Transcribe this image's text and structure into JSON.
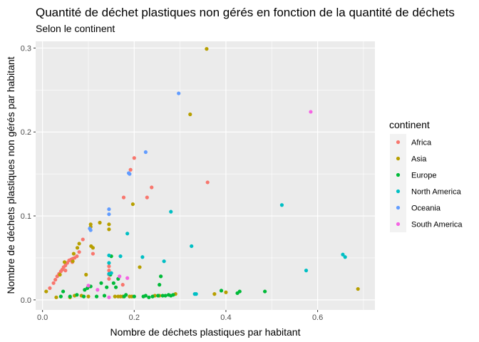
{
  "chart_data": {
    "type": "scatter",
    "title": "Quantité de déchet plastiques non gérés en fonction de la quantité de déchets",
    "subtitle": "Selon le continent",
    "xlabel": "Nombre de déchets plastiques par habitant",
    "ylabel": "Nombre de déchets plastiques non gérés par habitant",
    "xlim": [
      -0.015,
      0.725
    ],
    "ylim": [
      -0.012,
      0.308
    ],
    "x_ticks": [
      0.0,
      0.2,
      0.4,
      0.6
    ],
    "x_tick_labels": [
      "0.0",
      "0.2",
      "0.4",
      "0.6"
    ],
    "y_ticks": [
      0.0,
      0.1,
      0.2,
      0.3
    ],
    "y_tick_labels": [
      "0.0",
      "0.1",
      "0.2",
      "0.3"
    ],
    "grid": true,
    "legend_title": "continent",
    "legend_position": "right",
    "series": [
      {
        "name": "Africa",
        "color": "#F8766D",
        "points": [
          [
            0.016,
            0.014
          ],
          [
            0.024,
            0.02
          ],
          [
            0.028,
            0.024
          ],
          [
            0.032,
            0.028
          ],
          [
            0.036,
            0.031
          ],
          [
            0.04,
            0.034
          ],
          [
            0.043,
            0.036
          ],
          [
            0.046,
            0.039
          ],
          [
            0.05,
            0.041
          ],
          [
            0.054,
            0.044
          ],
          [
            0.058,
            0.047
          ],
          [
            0.062,
            0.048
          ],
          [
            0.066,
            0.049
          ],
          [
            0.07,
            0.05
          ],
          [
            0.08,
            0.057
          ],
          [
            0.088,
            0.072
          ],
          [
            0.145,
            0.04
          ],
          [
            0.145,
            0.035
          ],
          [
            0.145,
            0.03
          ],
          [
            0.175,
            0.018
          ],
          [
            0.177,
            0.122
          ],
          [
            0.192,
            0.155
          ],
          [
            0.2,
            0.169
          ],
          [
            0.228,
            0.122
          ],
          [
            0.238,
            0.134
          ],
          [
            0.36,
            0.14
          ],
          [
            0.05,
            0.035
          ],
          [
            0.065,
            0.045
          ],
          [
            0.075,
            0.052
          ],
          [
            0.145,
            0.025
          ],
          [
            0.11,
            0.055
          ]
        ]
      },
      {
        "name": "Asia",
        "color": "#B79F00",
        "points": [
          [
            0.008,
            0.01
          ],
          [
            0.03,
            0.003
          ],
          [
            0.038,
            0.03
          ],
          [
            0.048,
            0.045
          ],
          [
            0.06,
            0.003
          ],
          [
            0.066,
            0.046
          ],
          [
            0.068,
            0.055
          ],
          [
            0.07,
            0.005
          ],
          [
            0.076,
            0.062
          ],
          [
            0.08,
            0.067
          ],
          [
            0.085,
            0.005
          ],
          [
            0.095,
            0.03
          ],
          [
            0.1,
            0.004
          ],
          [
            0.105,
            0.087
          ],
          [
            0.105,
            0.09
          ],
          [
            0.106,
            0.064
          ],
          [
            0.11,
            0.062
          ],
          [
            0.125,
            0.092
          ],
          [
            0.145,
            0.09
          ],
          [
            0.145,
            0.084
          ],
          [
            0.158,
            0.004
          ],
          [
            0.165,
            0.004
          ],
          [
            0.17,
            0.004
          ],
          [
            0.175,
            0.004
          ],
          [
            0.19,
            0.004
          ],
          [
            0.195,
            0.004
          ],
          [
            0.197,
            0.114
          ],
          [
            0.212,
            0.039
          ],
          [
            0.245,
            0.005
          ],
          [
            0.255,
            0.005
          ],
          [
            0.29,
            0.007
          ],
          [
            0.322,
            0.221
          ],
          [
            0.358,
            0.299
          ],
          [
            0.375,
            0.007
          ],
          [
            0.4,
            0.009
          ],
          [
            0.688,
            0.013
          ]
        ]
      },
      {
        "name": "Europe",
        "color": "#00BA38",
        "points": [
          [
            0.04,
            0.004
          ],
          [
            0.045,
            0.01
          ],
          [
            0.06,
            0.004
          ],
          [
            0.075,
            0.006
          ],
          [
            0.09,
            0.004
          ],
          [
            0.092,
            0.012
          ],
          [
            0.098,
            0.014
          ],
          [
            0.105,
            0.016
          ],
          [
            0.118,
            0.004
          ],
          [
            0.128,
            0.02
          ],
          [
            0.135,
            0.005
          ],
          [
            0.14,
            0.015
          ],
          [
            0.148,
            0.03
          ],
          [
            0.15,
            0.052
          ],
          [
            0.155,
            0.02
          ],
          [
            0.16,
            0.015
          ],
          [
            0.165,
            0.025
          ],
          [
            0.178,
            0.004
          ],
          [
            0.182,
            0.006
          ],
          [
            0.2,
            0.004
          ],
          [
            0.22,
            0.004
          ],
          [
            0.225,
            0.005
          ],
          [
            0.232,
            0.003
          ],
          [
            0.24,
            0.004
          ],
          [
            0.252,
            0.005
          ],
          [
            0.255,
            0.018
          ],
          [
            0.258,
            0.028
          ],
          [
            0.262,
            0.005
          ],
          [
            0.268,
            0.005
          ],
          [
            0.275,
            0.006
          ],
          [
            0.28,
            0.005
          ],
          [
            0.285,
            0.006
          ],
          [
            0.39,
            0.011
          ],
          [
            0.425,
            0.008
          ],
          [
            0.43,
            0.01
          ],
          [
            0.485,
            0.01
          ]
        ]
      },
      {
        "name": "North America",
        "color": "#00BFC4",
        "points": [
          [
            0.145,
            0.053
          ],
          [
            0.145,
            0.044
          ],
          [
            0.145,
            0.031
          ],
          [
            0.15,
            0.032
          ],
          [
            0.17,
            0.052
          ],
          [
            0.185,
            0.079
          ],
          [
            0.218,
            0.051
          ],
          [
            0.265,
            0.046
          ],
          [
            0.28,
            0.105
          ],
          [
            0.325,
            0.064
          ],
          [
            0.332,
            0.007
          ],
          [
            0.335,
            0.007
          ],
          [
            0.522,
            0.113
          ],
          [
            0.575,
            0.035
          ],
          [
            0.655,
            0.054
          ],
          [
            0.66,
            0.051
          ]
        ]
      },
      {
        "name": "Oceania",
        "color": "#619CFF",
        "points": [
          [
            0.103,
            0.085
          ],
          [
            0.105,
            0.083
          ],
          [
            0.145,
            0.108
          ],
          [
            0.145,
            0.102
          ],
          [
            0.188,
            0.151
          ],
          [
            0.19,
            0.15
          ],
          [
            0.225,
            0.176
          ],
          [
            0.297,
            0.246
          ]
        ]
      },
      {
        "name": "South America",
        "color": "#F564E3",
        "points": [
          [
            0.168,
            0.028
          ],
          [
            0.185,
            0.026
          ],
          [
            0.1,
            0.017
          ],
          [
            0.12,
            0.012
          ],
          [
            0.145,
            0.003
          ],
          [
            0.585,
            0.224
          ]
        ]
      }
    ]
  },
  "style": {
    "panel_bg": "#EBEBEB",
    "grid_major": "#FFFFFF",
    "legend_key_bg": "#F2F2F2"
  }
}
